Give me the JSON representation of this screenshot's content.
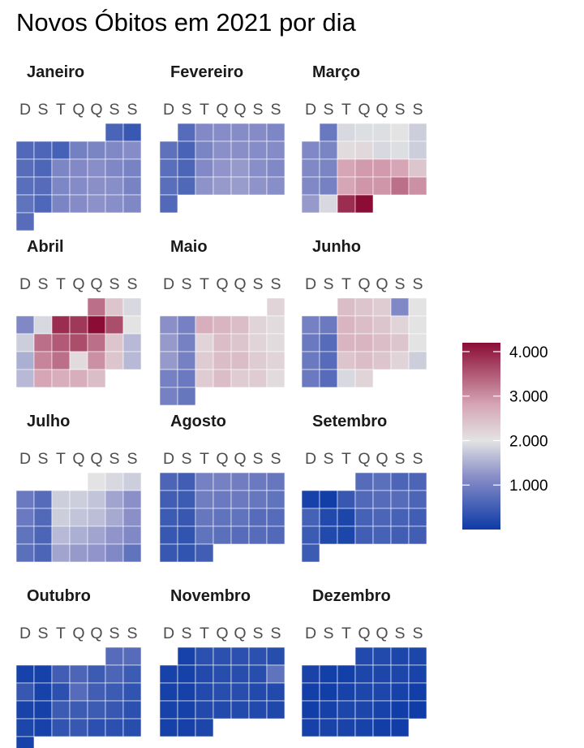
{
  "title": "Novos Óbitos em 2021 por dia",
  "chart_data": {
    "type": "heatmap",
    "title": "Novos Óbitos em 2021 por dia",
    "year": 2021,
    "week_start": "sunday",
    "weekday_labels": [
      "D",
      "S",
      "T",
      "Q",
      "Q",
      "S",
      "S"
    ],
    "colorscale": {
      "colors": [
        "#0d3ba6",
        "#8a8fc8",
        "#e3e3e3",
        "#d6a6b6",
        "#8b0c35"
      ],
      "stops": [
        0,
        1200,
        2000,
        2800,
        4200
      ]
    },
    "legend": {
      "position": "right",
      "ticks": [
        1000,
        2000,
        3000,
        4000
      ],
      "tick_labels": [
        "1.000",
        "2.000",
        "3.000",
        "4.000"
      ]
    },
    "months": [
      {
        "name": "Janeiro",
        "values": [
          590,
          420,
          650,
          620,
          550,
          980,
          1050,
          1100,
          1150,
          710,
          610,
          1070,
          1120,
          1180,
          1090,
          1030,
          740,
          700,
          1080,
          1140,
          1200,
          1180,
          1030,
          800,
          630,
          1060,
          1140,
          1220,
          1180,
          1090,
          720
        ]
      },
      {
        "name": "Fevereiro",
        "values": [
          700,
          1120,
          1150,
          1150,
          1140,
          1080,
          780,
          580,
          1050,
          1200,
          1190,
          1150,
          1140,
          740,
          600,
          1120,
          1250,
          1300,
          1180,
          1100,
          740,
          640,
          1230,
          1300,
          1320,
          1240,
          1180,
          650
        ]
      },
      {
        "name": "Março",
        "values": [
          880,
          1900,
          1950,
          1950,
          2000,
          1800,
          1100,
          1050,
          2100,
          2150,
          1900,
          1950,
          1800,
          1100,
          1050,
          2800,
          2900,
          2900,
          2800,
          2400,
          1100,
          1000,
          2800,
          2950,
          2950,
          3300,
          3000,
          1300,
          1900,
          3900,
          4200
        ]
      },
      {
        "name": "Abril",
        "values": [
          3300,
          2400,
          1900,
          1100,
          1900,
          3900,
          3800,
          4200,
          3600,
          2000,
          1800,
          3300,
          3500,
          3600,
          3300,
          2400,
          1600,
          1500,
          3100,
          3300,
          2100,
          3000,
          2400,
          1600,
          1600,
          2800,
          2700,
          2700,
          2500
        ]
      },
      {
        "name": "Maio",
        "values": [
          2200,
          1200,
          1000,
          2700,
          2600,
          2500,
          2200,
          2100,
          1300,
          1000,
          2200,
          2500,
          2400,
          2200,
          2100,
          1300,
          1000,
          2300,
          2500,
          2500,
          2300,
          2200,
          1000,
          900,
          2300,
          2500,
          2300,
          2300,
          2100,
          1000,
          850
        ]
      },
      {
        "name": "Junho",
        "values": [
          2500,
          2400,
          2300,
          1100,
          2000,
          1000,
          900,
          2600,
          2500,
          2400,
          2200,
          2000,
          900,
          700,
          2600,
          2600,
          2500,
          2400,
          2000,
          900,
          700,
          2400,
          2500,
          2400,
          2200,
          1800,
          900,
          700,
          1900,
          2200
        ]
      },
      {
        "name": "Julho",
        "values": [
          2000,
          1900,
          1800,
          900,
          700,
          1800,
          1800,
          1700,
          1400,
          1200,
          900,
          650,
          1800,
          1700,
          1650,
          1450,
          1200,
          800,
          600,
          1600,
          1500,
          1400,
          1250,
          1100,
          750,
          600,
          1400,
          1300,
          1250,
          1100,
          800
        ]
      },
      {
        "name": "Agosto",
        "values": [
          600,
          500,
          1000,
          1000,
          950,
          900,
          850,
          500,
          450,
          950,
          900,
          900,
          850,
          800,
          450,
          400,
          850,
          800,
          800,
          700,
          700,
          400,
          350,
          800,
          750,
          700,
          700,
          650,
          400,
          350,
          500
        ]
      },
      {
        "name": "Setembro",
        "values": [
          700,
          750,
          600,
          600,
          100,
          50,
          400,
          650,
          700,
          700,
          600,
          550,
          200,
          150,
          550,
          600,
          550,
          500,
          450,
          200,
          150,
          500,
          550,
          500,
          500,
          450
        ]
      },
      {
        "name": "Outubro",
        "values": [
          700,
          700,
          100,
          80,
          500,
          600,
          450,
          600,
          450,
          400,
          100,
          300,
          700,
          500,
          450,
          350,
          120,
          80,
          450,
          450,
          450,
          400,
          300,
          150,
          100,
          350,
          400,
          300,
          300,
          250,
          100
        ]
      },
      {
        "name": "Novembro",
        "values": [
          100,
          300,
          300,
          300,
          300,
          250,
          100,
          90,
          200,
          250,
          250,
          250,
          800,
          80,
          80,
          200,
          250,
          250,
          200,
          200,
          100,
          80,
          200,
          200,
          200,
          200,
          180,
          90,
          80,
          150
        ]
      },
      {
        "name": "Dezembro",
        "values": [
          200,
          200,
          150,
          150,
          120,
          60,
          60,
          150,
          150,
          150,
          120,
          60,
          50,
          100,
          150,
          150,
          100,
          50,
          40,
          80,
          150,
          150,
          100,
          30,
          20,
          80,
          120,
          120,
          100,
          50,
          30
        ]
      }
    ]
  }
}
